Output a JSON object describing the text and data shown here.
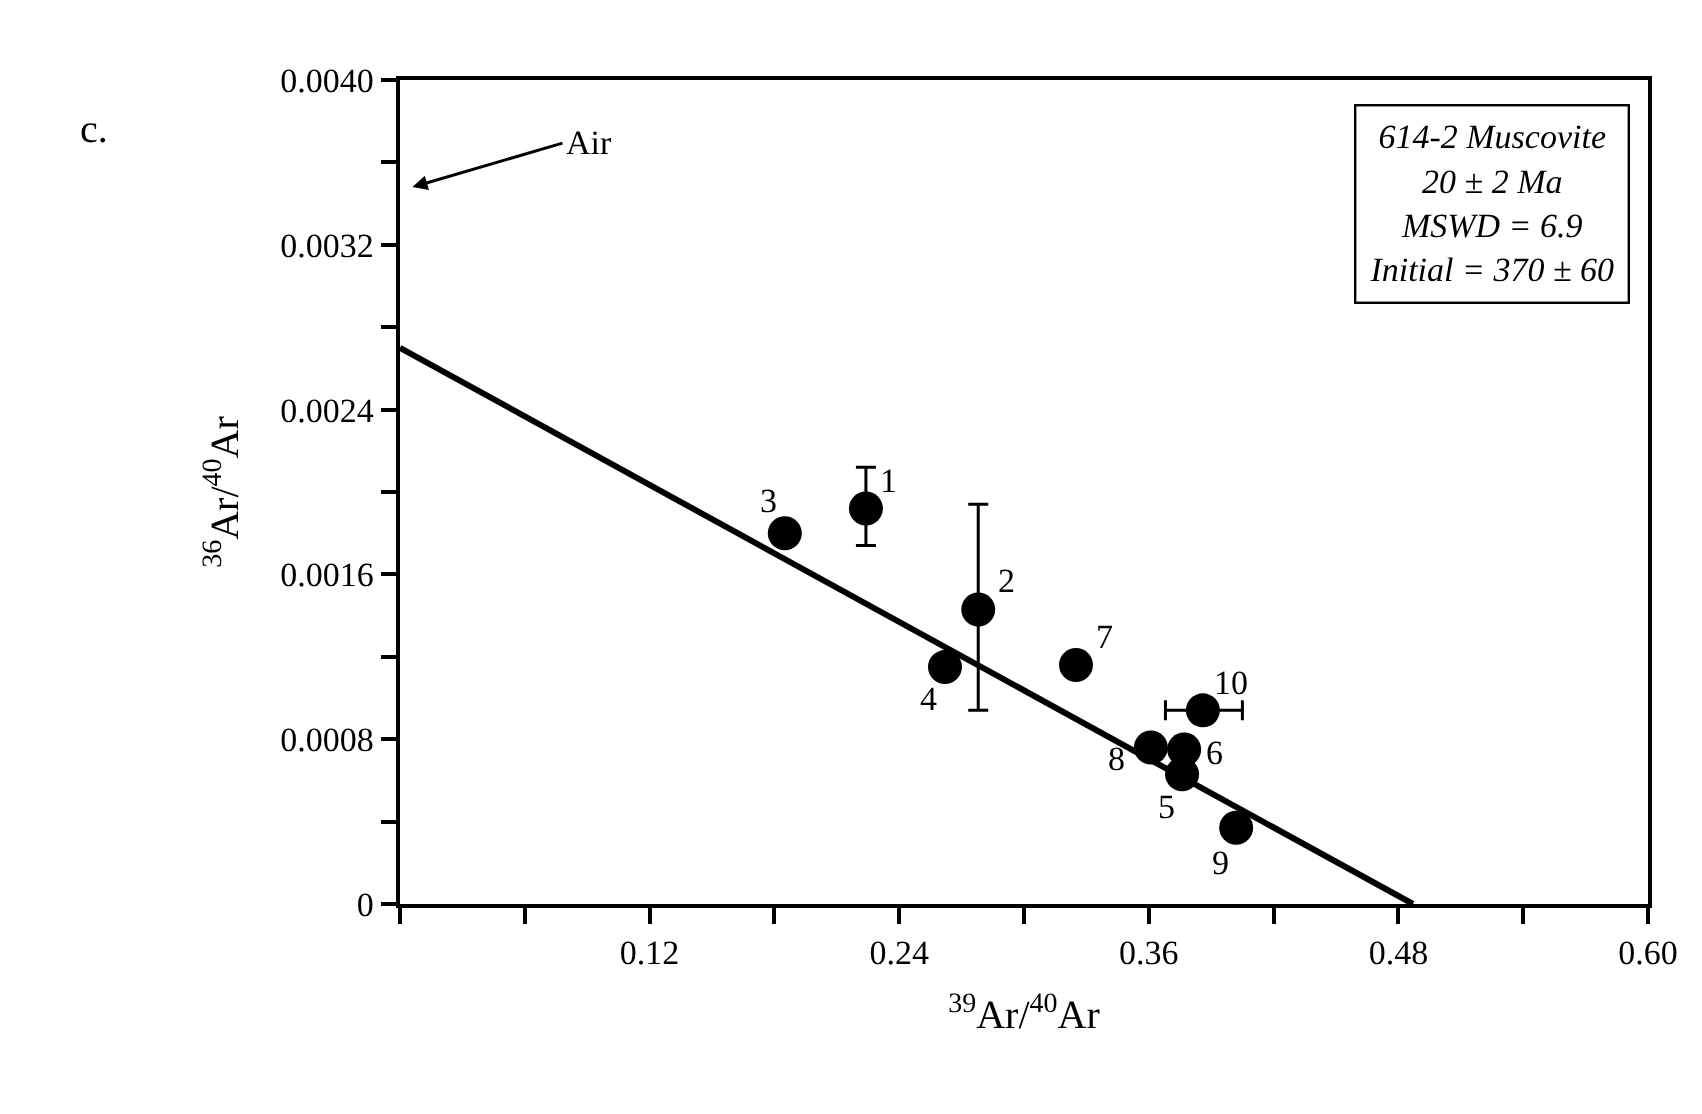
{
  "chart_data": {
    "type": "scatter",
    "xlabel": "$^{39}$Ar/$^{40}$Ar",
    "ylabel": "$^{36}$Ar/$^{40}$Ar",
    "xlim": [
      0,
      0.6
    ],
    "ylim": [
      0,
      0.004
    ],
    "xticks": [
      {
        "value": 0,
        "label": null
      },
      {
        "value": 0.06,
        "label": null
      },
      0.12,
      {
        "value": 0.18,
        "label": null
      },
      0.24,
      {
        "value": 0.3,
        "label": null
      },
      0.36,
      {
        "value": 0.42,
        "label": null
      },
      0.48,
      {
        "value": 0.54,
        "label": null
      },
      {
        "value": 0.6,
        "label": "0.60"
      }
    ],
    "yticks": [
      0,
      {
        "value": 0.0004,
        "label": null
      },
      0.0008,
      {
        "value": 0.0012,
        "label": null
      },
      0.0016,
      {
        "value": 0.002,
        "label": null
      },
      0.0024,
      {
        "value": 0.0028,
        "label": null
      },
      0.0032,
      {
        "value": 0.0036,
        "label": null
      },
      {
        "value": 0.004,
        "label": "0.0040"
      }
    ],
    "legend": false,
    "series": [
      {
        "color": "#000000",
        "marker": "circle",
        "x": [
          0.224,
          0.278,
          0.185,
          0.262,
          0.376,
          0.377,
          0.325,
          0.361,
          0.402,
          0.386
        ],
        "values": [
          0.00192,
          0.00143,
          0.0018,
          0.00115,
          0.00063,
          0.00075,
          0.00116,
          0.00076,
          0.00037,
          0.00094
        ],
        "errors": [
          [
            0.00174,
            0.00212
          ],
          [
            0.00094,
            0.00194
          ],
          null,
          null,
          null,
          null,
          null,
          null,
          null,
          null
        ],
        "xerrors": [
          null,
          null,
          null,
          null,
          null,
          null,
          null,
          null,
          null,
          [
            0.368,
            0.405
          ]
        ]
      },
      {
        "type": "line",
        "color": "#000000",
        "marker": "none",
        "line_style": "solid",
        "x": [
          0,
          0.487
        ],
        "values": [
          0.0027,
          0
        ]
      }
    ],
    "annotations": [
      "c.",
      "Air",
      "614-2 Muscovite\n20 ± 2 Ma\nMSWD = 6.9\nInitial = 370 ± 60",
      {
        "text": "1",
        "x": 0.224,
        "y": 0.00192
      },
      {
        "text": "2",
        "x": 0.278,
        "y": 0.00143
      },
      {
        "text": "3",
        "x": 0.185,
        "y": 0.0018
      },
      {
        "text": "4",
        "x": 0.262,
        "y": 0.00115
      },
      {
        "text": "5",
        "x": 0.376,
        "y": 0.00063
      },
      {
        "text": "6",
        "x": 0.377,
        "y": 0.00075
      },
      {
        "text": "7",
        "x": 0.325,
        "y": 0.00116
      },
      {
        "text": "8",
        "x": 0.361,
        "y": 0.00076
      },
      {
        "text": "9",
        "x": 0.402,
        "y": 0.00037
      },
      {
        "text": "10",
        "x": 0.386,
        "y": 0.00094
      }
    ]
  }
}
